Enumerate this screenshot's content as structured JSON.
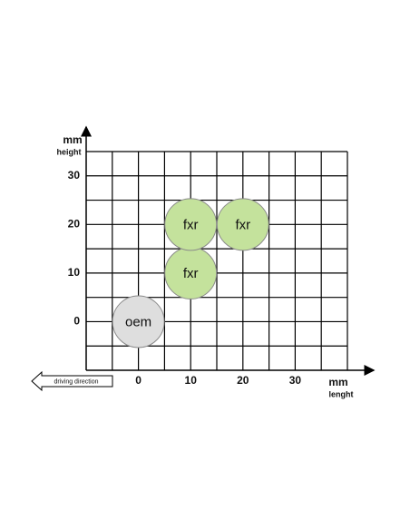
{
  "chart_data": {
    "type": "scatter",
    "x_unit": "mm",
    "x_label": "lenght",
    "y_unit": "mm",
    "y_label": "height",
    "annotation": "driving direction",
    "xlim": [
      -10,
      40
    ],
    "ylim": [
      -10,
      35
    ],
    "xticks": [
      0,
      10,
      20,
      30
    ],
    "yticks": [
      0,
      10,
      20,
      30
    ],
    "grid": true,
    "series": [
      {
        "name": "oem",
        "color": "#dedede",
        "x": [
          0
        ],
        "values": [
          0
        ]
      },
      {
        "name": "fxr",
        "color": "#c4e29c",
        "x": [
          10,
          10,
          20
        ],
        "values": [
          10,
          20,
          20
        ]
      }
    ]
  }
}
